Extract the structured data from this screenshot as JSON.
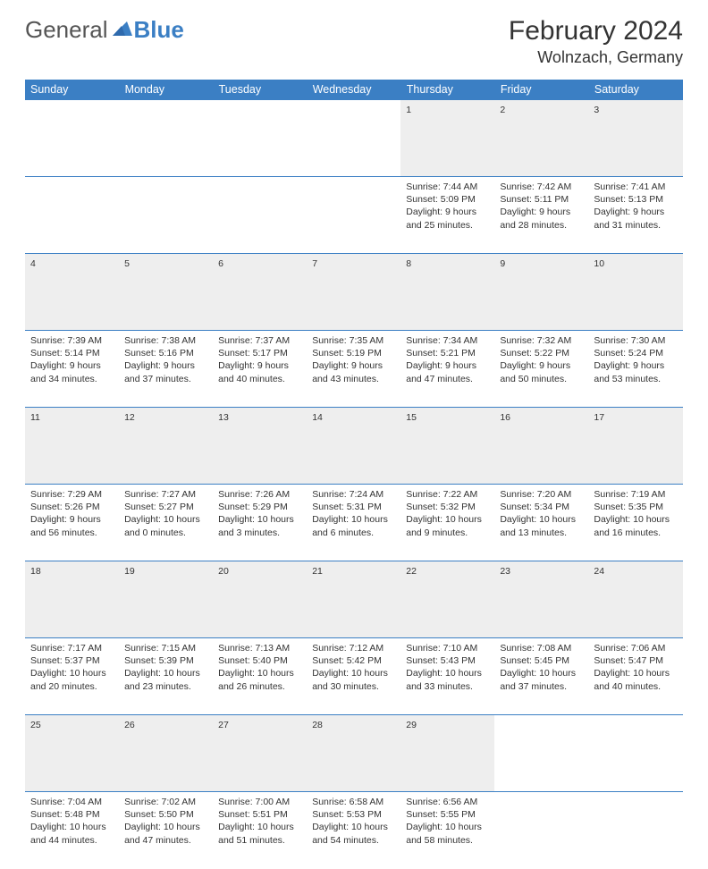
{
  "brand": {
    "left": "General",
    "right": "Blue"
  },
  "title": "February 2024",
  "location": "Wolnzach, Germany",
  "colors": {
    "accent": "#3b7fc4",
    "daynum_bg": "#eeeeee",
    "text": "#333333",
    "bg": "#ffffff"
  },
  "day_headers": [
    "Sunday",
    "Monday",
    "Tuesday",
    "Wednesday",
    "Thursday",
    "Friday",
    "Saturday"
  ],
  "weeks": [
    [
      null,
      null,
      null,
      null,
      {
        "n": "1",
        "sr": "Sunrise: 7:44 AM",
        "ss": "Sunset: 5:09 PM",
        "d1": "Daylight: 9 hours",
        "d2": "and 25 minutes."
      },
      {
        "n": "2",
        "sr": "Sunrise: 7:42 AM",
        "ss": "Sunset: 5:11 PM",
        "d1": "Daylight: 9 hours",
        "d2": "and 28 minutes."
      },
      {
        "n": "3",
        "sr": "Sunrise: 7:41 AM",
        "ss": "Sunset: 5:13 PM",
        "d1": "Daylight: 9 hours",
        "d2": "and 31 minutes."
      }
    ],
    [
      {
        "n": "4",
        "sr": "Sunrise: 7:39 AM",
        "ss": "Sunset: 5:14 PM",
        "d1": "Daylight: 9 hours",
        "d2": "and 34 minutes."
      },
      {
        "n": "5",
        "sr": "Sunrise: 7:38 AM",
        "ss": "Sunset: 5:16 PM",
        "d1": "Daylight: 9 hours",
        "d2": "and 37 minutes."
      },
      {
        "n": "6",
        "sr": "Sunrise: 7:37 AM",
        "ss": "Sunset: 5:17 PM",
        "d1": "Daylight: 9 hours",
        "d2": "and 40 minutes."
      },
      {
        "n": "7",
        "sr": "Sunrise: 7:35 AM",
        "ss": "Sunset: 5:19 PM",
        "d1": "Daylight: 9 hours",
        "d2": "and 43 minutes."
      },
      {
        "n": "8",
        "sr": "Sunrise: 7:34 AM",
        "ss": "Sunset: 5:21 PM",
        "d1": "Daylight: 9 hours",
        "d2": "and 47 minutes."
      },
      {
        "n": "9",
        "sr": "Sunrise: 7:32 AM",
        "ss": "Sunset: 5:22 PM",
        "d1": "Daylight: 9 hours",
        "d2": "and 50 minutes."
      },
      {
        "n": "10",
        "sr": "Sunrise: 7:30 AM",
        "ss": "Sunset: 5:24 PM",
        "d1": "Daylight: 9 hours",
        "d2": "and 53 minutes."
      }
    ],
    [
      {
        "n": "11",
        "sr": "Sunrise: 7:29 AM",
        "ss": "Sunset: 5:26 PM",
        "d1": "Daylight: 9 hours",
        "d2": "and 56 minutes."
      },
      {
        "n": "12",
        "sr": "Sunrise: 7:27 AM",
        "ss": "Sunset: 5:27 PM",
        "d1": "Daylight: 10 hours",
        "d2": "and 0 minutes."
      },
      {
        "n": "13",
        "sr": "Sunrise: 7:26 AM",
        "ss": "Sunset: 5:29 PM",
        "d1": "Daylight: 10 hours",
        "d2": "and 3 minutes."
      },
      {
        "n": "14",
        "sr": "Sunrise: 7:24 AM",
        "ss": "Sunset: 5:31 PM",
        "d1": "Daylight: 10 hours",
        "d2": "and 6 minutes."
      },
      {
        "n": "15",
        "sr": "Sunrise: 7:22 AM",
        "ss": "Sunset: 5:32 PM",
        "d1": "Daylight: 10 hours",
        "d2": "and 9 minutes."
      },
      {
        "n": "16",
        "sr": "Sunrise: 7:20 AM",
        "ss": "Sunset: 5:34 PM",
        "d1": "Daylight: 10 hours",
        "d2": "and 13 minutes."
      },
      {
        "n": "17",
        "sr": "Sunrise: 7:19 AM",
        "ss": "Sunset: 5:35 PM",
        "d1": "Daylight: 10 hours",
        "d2": "and 16 minutes."
      }
    ],
    [
      {
        "n": "18",
        "sr": "Sunrise: 7:17 AM",
        "ss": "Sunset: 5:37 PM",
        "d1": "Daylight: 10 hours",
        "d2": "and 20 minutes."
      },
      {
        "n": "19",
        "sr": "Sunrise: 7:15 AM",
        "ss": "Sunset: 5:39 PM",
        "d1": "Daylight: 10 hours",
        "d2": "and 23 minutes."
      },
      {
        "n": "20",
        "sr": "Sunrise: 7:13 AM",
        "ss": "Sunset: 5:40 PM",
        "d1": "Daylight: 10 hours",
        "d2": "and 26 minutes."
      },
      {
        "n": "21",
        "sr": "Sunrise: 7:12 AM",
        "ss": "Sunset: 5:42 PM",
        "d1": "Daylight: 10 hours",
        "d2": "and 30 minutes."
      },
      {
        "n": "22",
        "sr": "Sunrise: 7:10 AM",
        "ss": "Sunset: 5:43 PM",
        "d1": "Daylight: 10 hours",
        "d2": "and 33 minutes."
      },
      {
        "n": "23",
        "sr": "Sunrise: 7:08 AM",
        "ss": "Sunset: 5:45 PM",
        "d1": "Daylight: 10 hours",
        "d2": "and 37 minutes."
      },
      {
        "n": "24",
        "sr": "Sunrise: 7:06 AM",
        "ss": "Sunset: 5:47 PM",
        "d1": "Daylight: 10 hours",
        "d2": "and 40 minutes."
      }
    ],
    [
      {
        "n": "25",
        "sr": "Sunrise: 7:04 AM",
        "ss": "Sunset: 5:48 PM",
        "d1": "Daylight: 10 hours",
        "d2": "and 44 minutes."
      },
      {
        "n": "26",
        "sr": "Sunrise: 7:02 AM",
        "ss": "Sunset: 5:50 PM",
        "d1": "Daylight: 10 hours",
        "d2": "and 47 minutes."
      },
      {
        "n": "27",
        "sr": "Sunrise: 7:00 AM",
        "ss": "Sunset: 5:51 PM",
        "d1": "Daylight: 10 hours",
        "d2": "and 51 minutes."
      },
      {
        "n": "28",
        "sr": "Sunrise: 6:58 AM",
        "ss": "Sunset: 5:53 PM",
        "d1": "Daylight: 10 hours",
        "d2": "and 54 minutes."
      },
      {
        "n": "29",
        "sr": "Sunrise: 6:56 AM",
        "ss": "Sunset: 5:55 PM",
        "d1": "Daylight: 10 hours",
        "d2": "and 58 minutes."
      },
      null,
      null
    ]
  ]
}
